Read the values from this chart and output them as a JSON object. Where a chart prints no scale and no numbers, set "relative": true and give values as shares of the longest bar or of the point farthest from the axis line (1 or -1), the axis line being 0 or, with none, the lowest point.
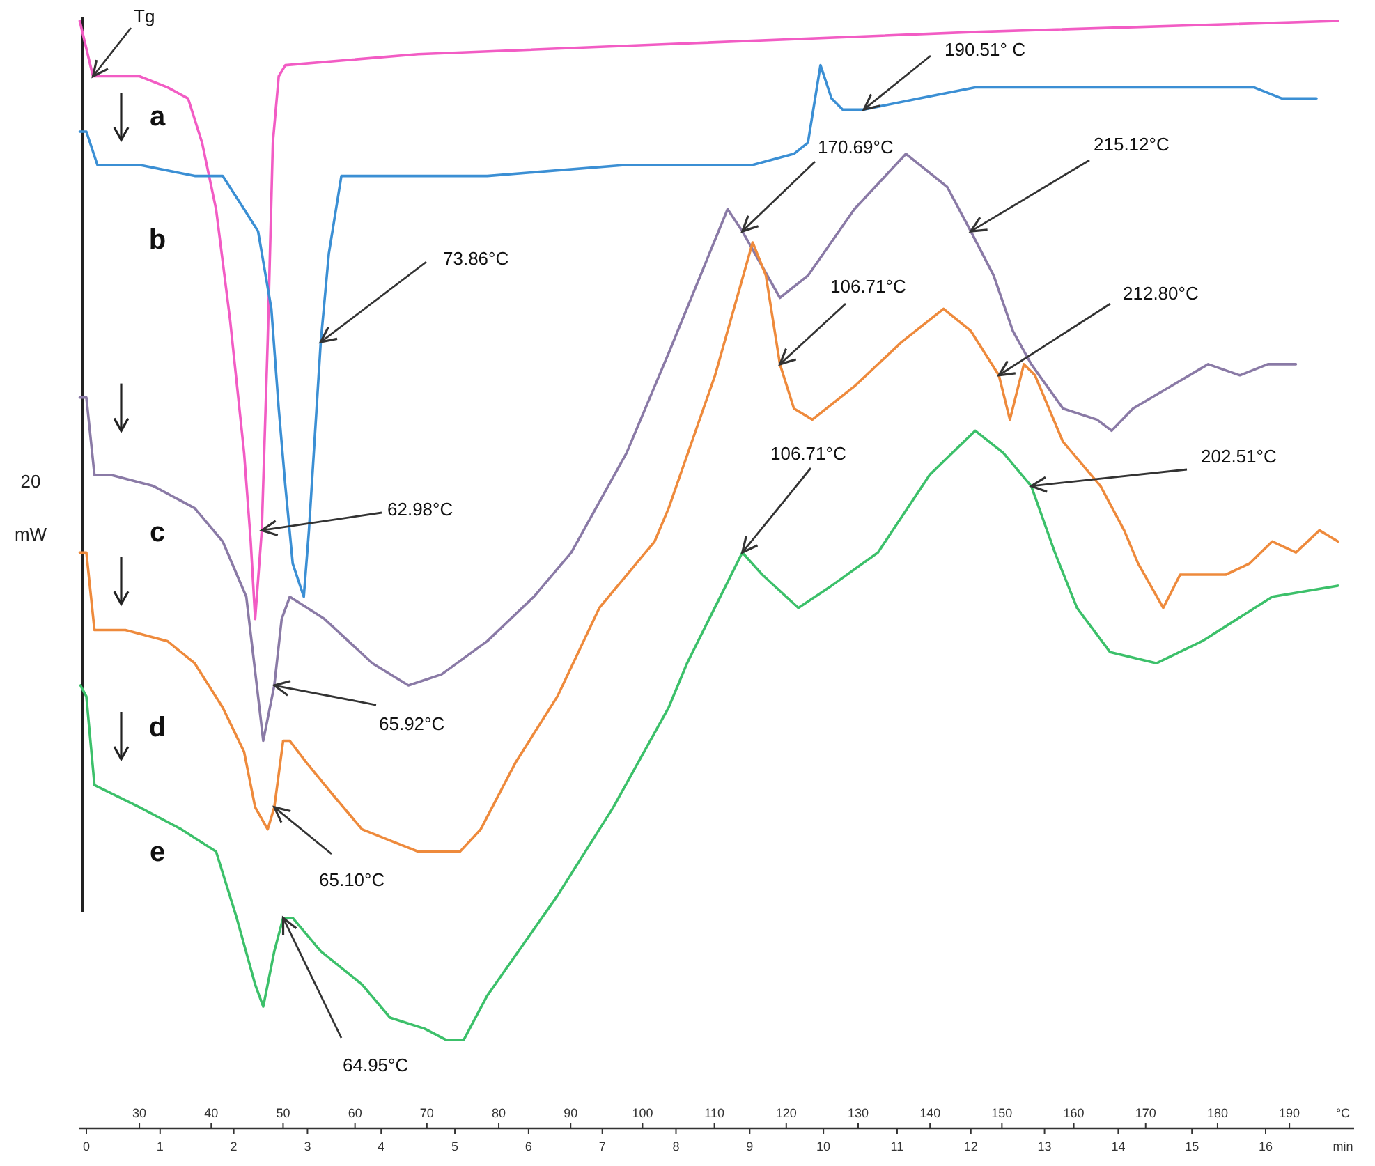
{
  "chart_data": {
    "type": "line",
    "relative": true,
    "ylabel": "20 mW",
    "xlabel": "min",
    "x2label": "°C",
    "xlim": [
      -0.1,
      17.2
    ],
    "xticks": [
      0,
      1,
      2,
      3,
      4,
      5,
      6,
      7,
      8,
      9,
      10,
      11,
      12,
      13,
      14,
      15,
      16
    ],
    "x2lim": [
      21.6,
      199
    ],
    "x2ticks": [
      30,
      40,
      50,
      60,
      70,
      80,
      90,
      100,
      110,
      120,
      130,
      140,
      150,
      160,
      170,
      180,
      190
    ],
    "series": [
      {
        "name": "a",
        "color": "#f25cc4",
        "x": [
          -0.09,
          0.09,
          0.72,
          1.1,
          1.38,
          1.57,
          1.76,
          1.95,
          2.14,
          2.23,
          2.29,
          2.38,
          2.46,
          2.53,
          2.61,
          2.7,
          4.5,
          8.28,
          12.06,
          16.98
        ],
        "values": [
          1.0,
          0.95,
          0.95,
          0.94,
          0.93,
          0.89,
          0.83,
          0.73,
          0.61,
          0.53,
          0.46,
          0.54,
          0.71,
          0.89,
          0.95,
          0.96,
          0.97,
          0.98,
          0.99,
          1.0
        ]
      },
      {
        "name": "b",
        "color": "#3b8fd4",
        "x": [
          -0.09,
          0,
          0.15,
          0.72,
          1.47,
          1.85,
          2.14,
          2.33,
          2.51,
          2.61,
          2.7,
          2.8,
          2.95,
          3.02,
          3.18,
          3.29,
          3.46,
          3.55,
          5.44,
          7.33,
          9.04,
          9.6,
          9.79,
          9.96,
          10.11,
          10.26,
          10.55,
          11.3,
          12.06,
          13.19,
          13.95,
          14.52,
          15.08,
          15.84,
          16.22,
          16.69
        ],
        "values": [
          0.9,
          0.9,
          0.87,
          0.87,
          0.86,
          0.86,
          0.83,
          0.81,
          0.74,
          0.65,
          0.58,
          0.51,
          0.48,
          0.54,
          0.71,
          0.79,
          0.86,
          0.86,
          0.86,
          0.87,
          0.87,
          0.88,
          0.89,
          0.96,
          0.93,
          0.92,
          0.92,
          0.93,
          0.94,
          0.94,
          0.94,
          0.94,
          0.94,
          0.94,
          0.93,
          0.93
        ]
      },
      {
        "name": "c",
        "color": "#8a7aa6",
        "x": [
          -0.09,
          0,
          0.11,
          0.34,
          0.91,
          1.47,
          1.85,
          2.17,
          2.33,
          2.4,
          2.55,
          2.65,
          2.76,
          3.23,
          3.88,
          4.37,
          4.82,
          5.44,
          6.07,
          6.58,
          7.33,
          7.9,
          8.7,
          8.9,
          9.41,
          9.79,
          10.42,
          11.12,
          11.68,
          12.0,
          12.31,
          12.57,
          12.82,
          13.25,
          13.71,
          13.91,
          14.2,
          14.71,
          15.22,
          15.65,
          16.03,
          16.41
        ],
        "values": [
          0.66,
          0.66,
          0.59,
          0.59,
          0.58,
          0.56,
          0.53,
          0.48,
          0.39,
          0.35,
          0.4,
          0.46,
          0.48,
          0.46,
          0.42,
          0.4,
          0.41,
          0.44,
          0.48,
          0.52,
          0.61,
          0.7,
          0.83,
          0.81,
          0.75,
          0.77,
          0.83,
          0.88,
          0.85,
          0.81,
          0.77,
          0.72,
          0.69,
          0.65,
          0.64,
          0.63,
          0.65,
          0.67,
          0.69,
          0.68,
          0.69,
          0.69
        ]
      },
      {
        "name": "d",
        "color": "#ee8a3c",
        "x": [
          -0.09,
          0,
          0.11,
          0.53,
          1.1,
          1.47,
          1.85,
          2.14,
          2.29,
          2.46,
          2.55,
          2.67,
          2.76,
          2.99,
          3.36,
          3.74,
          4.12,
          4.5,
          5.07,
          5.35,
          5.82,
          6.39,
          6.96,
          7.71,
          7.9,
          8.53,
          9.04,
          9.22,
          9.41,
          9.6,
          9.85,
          10.42,
          11.06,
          11.63,
          12.0,
          12.38,
          12.53,
          12.72,
          12.87,
          13.25,
          13.76,
          14.08,
          14.27,
          14.61,
          14.84,
          15.46,
          15.78,
          16.09,
          16.41,
          16.73,
          16.98
        ],
        "values": [
          0.52,
          0.52,
          0.45,
          0.45,
          0.44,
          0.42,
          0.38,
          0.34,
          0.29,
          0.27,
          0.29,
          0.35,
          0.35,
          0.33,
          0.3,
          0.27,
          0.26,
          0.25,
          0.25,
          0.27,
          0.33,
          0.39,
          0.47,
          0.53,
          0.56,
          0.68,
          0.8,
          0.77,
          0.69,
          0.65,
          0.64,
          0.67,
          0.71,
          0.74,
          0.72,
          0.68,
          0.64,
          0.69,
          0.68,
          0.62,
          0.58,
          0.54,
          0.51,
          0.47,
          0.5,
          0.5,
          0.51,
          0.53,
          0.52,
          0.54,
          0.53
        ]
      },
      {
        "name": "e",
        "color": "#3cc06a",
        "x": [
          -0.08,
          0,
          0.11,
          0.72,
          1.29,
          1.76,
          2.04,
          2.29,
          2.4,
          2.55,
          2.67,
          2.8,
          3.18,
          3.74,
          4.12,
          4.59,
          4.88,
          5.12,
          5.44,
          6.39,
          7.15,
          7.9,
          8.15,
          8.9,
          9.17,
          9.66,
          10.11,
          10.74,
          11.44,
          12.06,
          12.44,
          12.82,
          13.14,
          13.44,
          13.89,
          14.52,
          15.14,
          16.09,
          16.98
        ],
        "values": [
          0.4,
          0.39,
          0.31,
          0.29,
          0.27,
          0.25,
          0.19,
          0.13,
          0.11,
          0.16,
          0.19,
          0.19,
          0.16,
          0.13,
          0.1,
          0.09,
          0.08,
          0.08,
          0.12,
          0.21,
          0.29,
          0.38,
          0.42,
          0.52,
          0.5,
          0.47,
          0.49,
          0.52,
          0.59,
          0.63,
          0.61,
          0.58,
          0.52,
          0.47,
          0.43,
          0.42,
          0.44,
          0.48,
          0.49
        ]
      }
    ],
    "annotations": [
      {
        "text": "Tg",
        "x": 0.09,
        "y": 0.95
      },
      {
        "text": "190.51° C",
        "x": 10.55,
        "y": 0.92
      },
      {
        "text": "73.86°C",
        "x": 3.18,
        "y": 0.71
      },
      {
        "text": "62.98°C",
        "x": 2.38,
        "y": 0.54
      },
      {
        "text": "170.69°C",
        "x": 8.9,
        "y": 0.81
      },
      {
        "text": "215.12°C",
        "x": 12.0,
        "y": 0.81
      },
      {
        "text": "106.71°C",
        "x": 9.41,
        "y": 0.69
      },
      {
        "text": "212.80°C",
        "x": 12.38,
        "y": 0.68
      },
      {
        "text": "106.71°C",
        "x": 8.9,
        "y": 0.52
      },
      {
        "text": "202.51°C",
        "x": 12.82,
        "y": 0.58
      },
      {
        "text": "65.92°C",
        "x": 2.55,
        "y": 0.4
      },
      {
        "text": "65.10°C",
        "x": 2.55,
        "y": 0.29
      },
      {
        "text": "64.95°C",
        "x": 2.67,
        "y": 0.19
      }
    ]
  }
}
